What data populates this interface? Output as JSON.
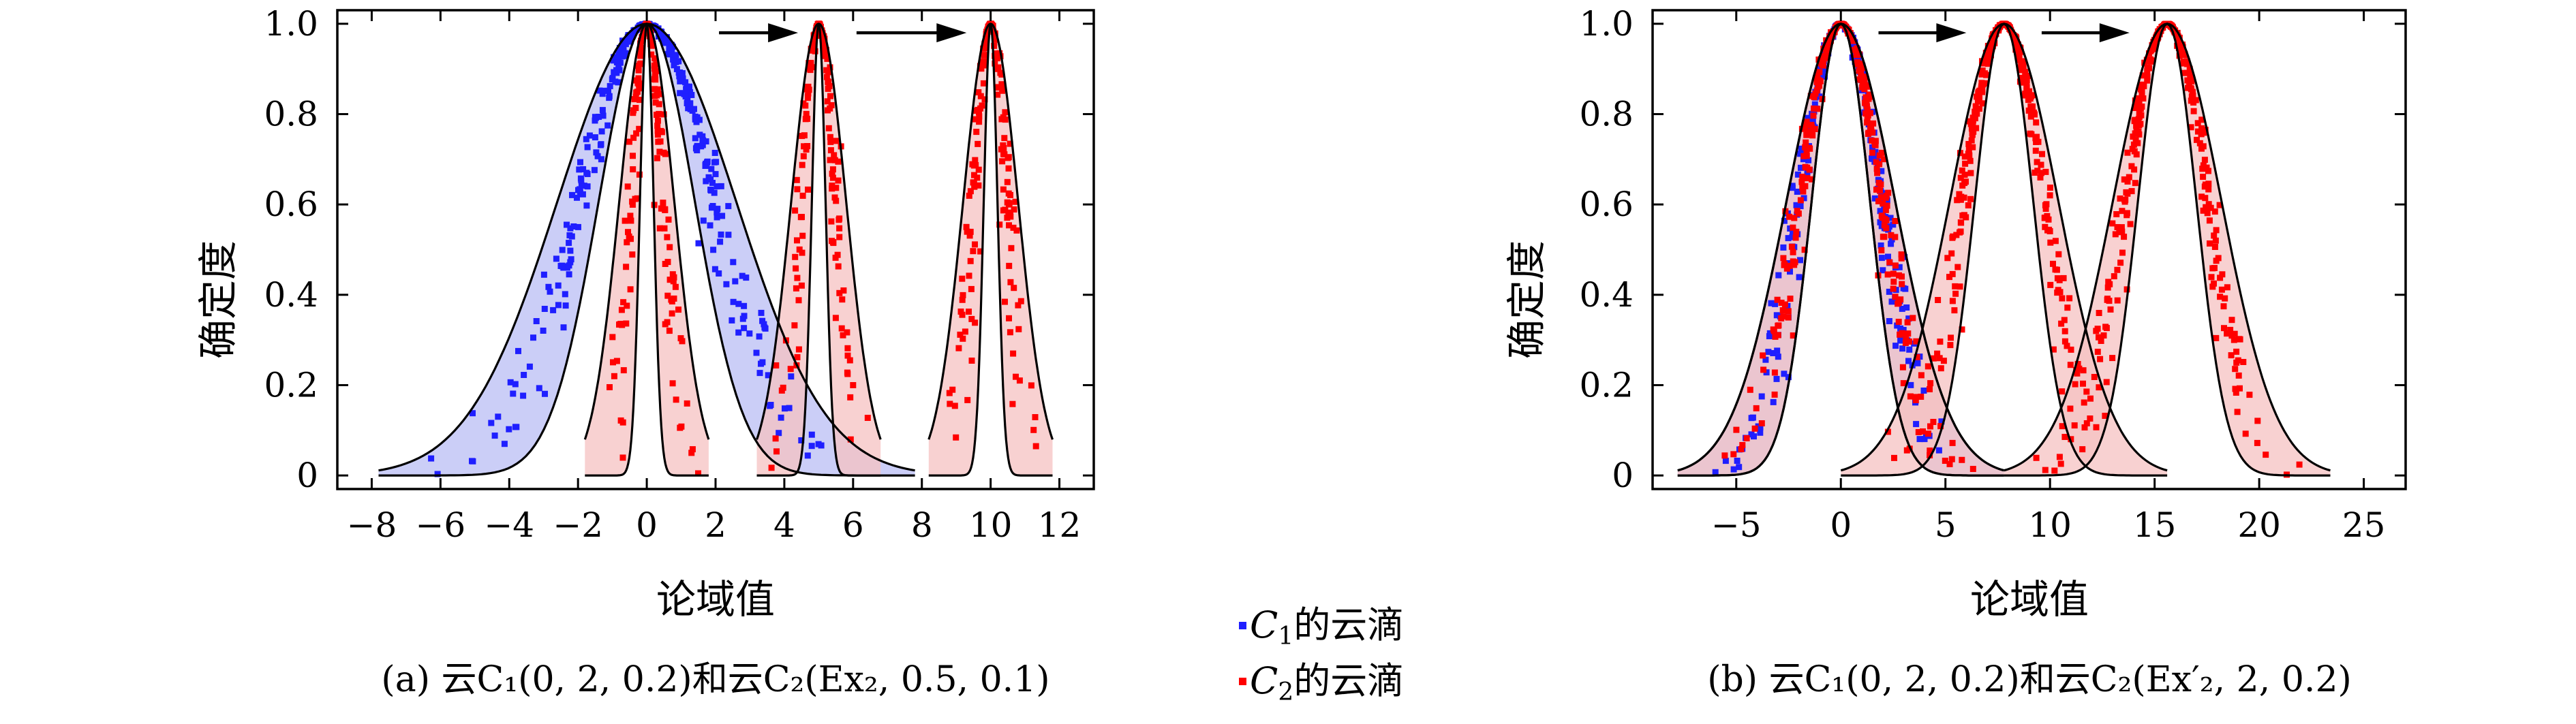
{
  "chart_data": [
    {
      "type": "scatter",
      "panel": "a",
      "caption": "(a) 云C₁(0, 2, 0.2)和云C₂(Ex₂, 0.5, 0.1)",
      "xlabel": "论域值",
      "ylabel": "确定度",
      "xlim": [
        -9,
        13
      ],
      "ylim": [
        -0.03,
        1.03
      ],
      "xticks": [
        -8,
        -6,
        -4,
        -2,
        0,
        2,
        4,
        6,
        8,
        10,
        12
      ],
      "yticks": [
        0,
        0.2,
        0.4,
        0.6,
        0.8,
        1.0
      ],
      "ytick_labels": [
        "0",
        "0.2",
        "0.4",
        "0.6",
        "0.8",
        "1.0"
      ],
      "grid": false,
      "series": [
        {
          "name": "C₁的云滴",
          "color": "#1f1fff",
          "clouds": [
            {
              "Ex": 0,
              "En": 2,
              "He": 0.2,
              "xmin": -7.8,
              "xmax": 7.8
            }
          ]
        },
        {
          "name": "C₂的云滴",
          "color": "#ff0000",
          "clouds": [
            {
              "Ex": 0,
              "En": 0.5,
              "He": 0.1,
              "xmin": -1.8,
              "xmax": 1.8
            },
            {
              "Ex": 5,
              "En": 0.5,
              "He": 0.1,
              "xmin": 3.2,
              "xmax": 6.8
            },
            {
              "Ex": 10,
              "En": 0.5,
              "He": 0.1,
              "xmin": 8.2,
              "xmax": 11.8
            }
          ]
        }
      ],
      "arrows": [
        {
          "from": 2.1,
          "to": 4.4,
          "y": 0.98
        },
        {
          "from": 6.1,
          "to": 9.3,
          "y": 0.98
        }
      ]
    },
    {
      "type": "scatter",
      "panel": "b",
      "caption": "(b) 云C₁(0, 2, 0.2)和云C₂(Ex′₂, 2, 0.2)",
      "xlabel": "论域值",
      "ylabel": "确定度",
      "xlim": [
        -9,
        27
      ],
      "ylim": [
        -0.03,
        1.03
      ],
      "xticks": [
        -5,
        0,
        5,
        10,
        15,
        20,
        25
      ],
      "yticks": [
        0,
        0.2,
        0.4,
        0.6,
        0.8,
        1.0
      ],
      "ytick_labels": [
        "0",
        "0.2",
        "0.4",
        "0.6",
        "0.8",
        "1.0"
      ],
      "grid": false,
      "series": [
        {
          "name": "C₁的云滴",
          "color": "#1f1fff",
          "clouds": [
            {
              "Ex": 0,
              "En": 2,
              "He": 0.2,
              "xmin": -7.8,
              "xmax": 7.8
            }
          ]
        },
        {
          "name": "C₂的云滴",
          "color": "#ff0000",
          "clouds": [
            {
              "Ex": 0,
              "En": 2,
              "He": 0.2,
              "xmin": -7.8,
              "xmax": 7.8
            },
            {
              "Ex": 7.8,
              "En": 2,
              "He": 0.2,
              "xmin": 0.0,
              "xmax": 15.6
            },
            {
              "Ex": 15.6,
              "En": 2,
              "He": 0.2,
              "xmin": 7.8,
              "xmax": 23.4
            }
          ]
        }
      ],
      "arrows": [
        {
          "from": 1.8,
          "to": 6.0,
          "y": 0.98
        },
        {
          "from": 9.6,
          "to": 13.8,
          "y": 0.98
        }
      ]
    }
  ],
  "legend": [
    {
      "var": "C",
      "sub": "1",
      "suffix": "的云滴",
      "color": "#1f1fff"
    },
    {
      "var": "C",
      "sub": "2",
      "suffix": "的云滴",
      "color": "#ff0000"
    }
  ],
  "colors": {
    "blue": "#1f1fff",
    "red": "#ff0000",
    "blue_fill": "#b9bdf4",
    "red_fill": "#f6c2c2"
  }
}
